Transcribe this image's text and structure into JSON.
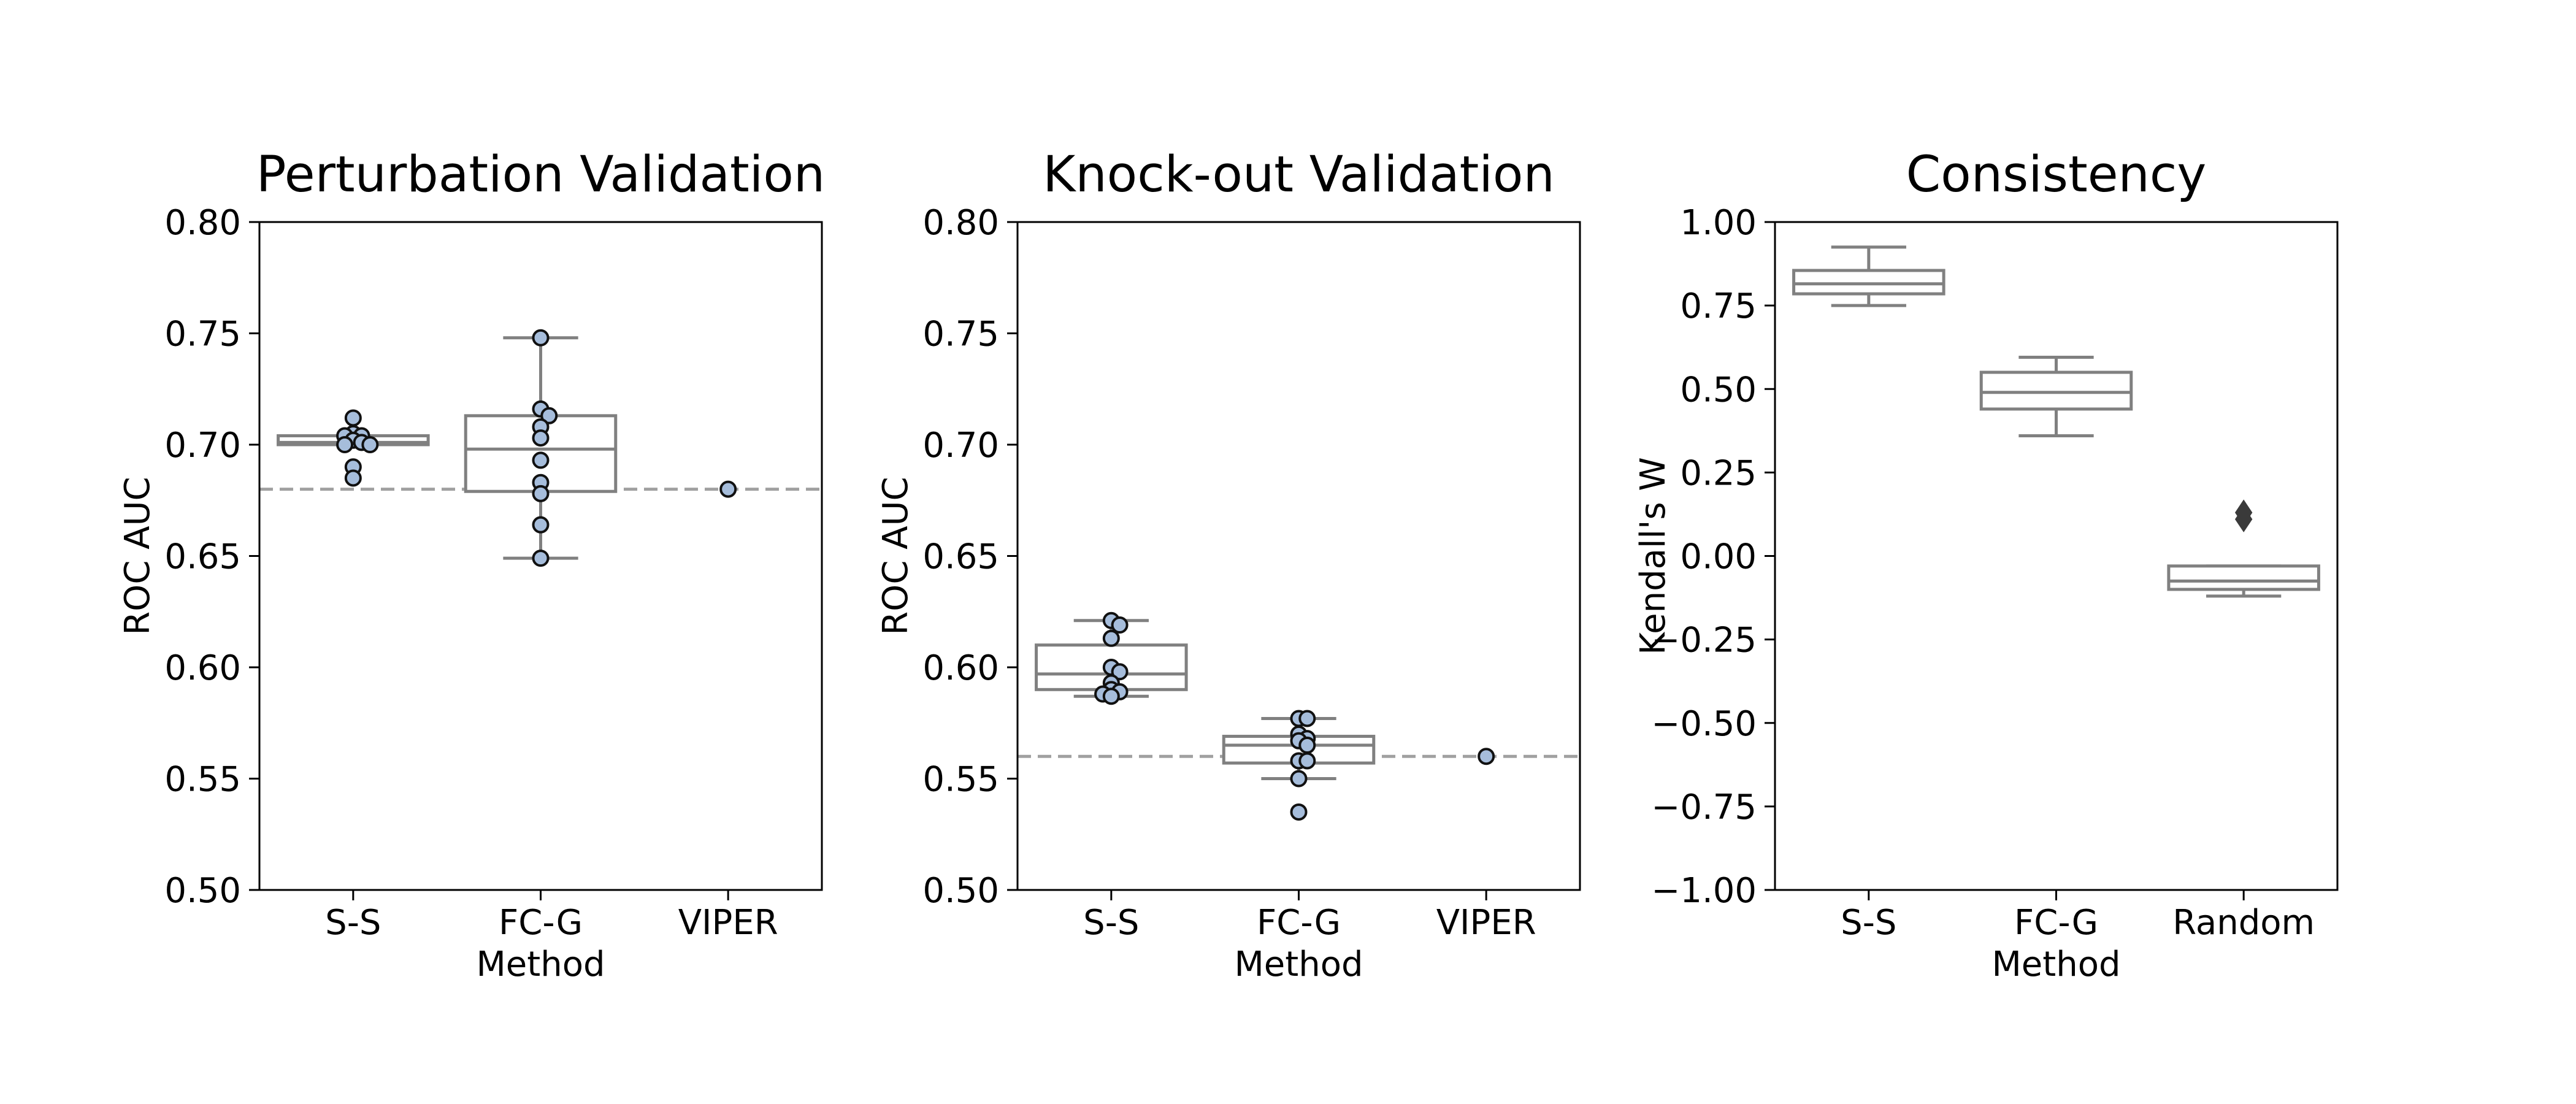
{
  "style": {
    "box_color": "#808080",
    "point_fill": "#a6bddb",
    "point_edge": "#111111",
    "outlier_color": "#3a3a3a",
    "reference_line_color": "#a0a0a0",
    "axis_color": "#000000"
  },
  "chart_data": [
    {
      "type": "box",
      "title": "Perturbation Validation",
      "xlabel": "Method",
      "ylabel": "ROC AUC",
      "ylim": [
        0.5,
        0.8
      ],
      "yticks": [
        0.5,
        0.55,
        0.6,
        0.65,
        0.7,
        0.75,
        0.8
      ],
      "ytick_labels": [
        "0.50",
        "0.55",
        "0.60",
        "0.65",
        "0.70",
        "0.75",
        "0.80"
      ],
      "categories": [
        "S-S",
        "FC-G",
        "VIPER"
      ],
      "reference_line": 0.68,
      "boxes": [
        {
          "category": "S-S",
          "whisker_low": 0.7,
          "q1": 0.7,
          "median": 0.701,
          "q3": 0.704,
          "whisker_high": 0.704
        },
        {
          "category": "FC-G",
          "whisker_low": 0.649,
          "q1": 0.679,
          "median": 0.698,
          "q3": 0.713,
          "whisker_high": 0.748
        }
      ],
      "points": [
        {
          "category": "S-S",
          "values": [
            0.712,
            0.705,
            0.704,
            0.704,
            0.702,
            0.701,
            0.7,
            0.7,
            0.69,
            0.685
          ]
        },
        {
          "category": "FC-G",
          "values": [
            0.748,
            0.716,
            0.713,
            0.708,
            0.703,
            0.693,
            0.683,
            0.678,
            0.664,
            0.649
          ]
        },
        {
          "category": "VIPER",
          "values": [
            0.68
          ]
        }
      ],
      "outliers": []
    },
    {
      "type": "box",
      "title": "Knock-out Validation",
      "xlabel": "Method",
      "ylabel": "ROC AUC",
      "ylim": [
        0.5,
        0.8
      ],
      "yticks": [
        0.5,
        0.55,
        0.6,
        0.65,
        0.7,
        0.75,
        0.8
      ],
      "ytick_labels": [
        "0.50",
        "0.55",
        "0.60",
        "0.65",
        "0.70",
        "0.75",
        "0.80"
      ],
      "categories": [
        "S-S",
        "FC-G",
        "VIPER"
      ],
      "reference_line": 0.56,
      "boxes": [
        {
          "category": "S-S",
          "whisker_low": 0.587,
          "q1": 0.59,
          "median": 0.597,
          "q3": 0.61,
          "whisker_high": 0.621
        },
        {
          "category": "FC-G",
          "whisker_low": 0.55,
          "q1": 0.557,
          "median": 0.565,
          "q3": 0.569,
          "whisker_high": 0.577
        }
      ],
      "points": [
        {
          "category": "S-S",
          "values": [
            0.621,
            0.619,
            0.613,
            0.6,
            0.598,
            0.593,
            0.59,
            0.589,
            0.588,
            0.587
          ]
        },
        {
          "category": "FC-G",
          "values": [
            0.577,
            0.577,
            0.57,
            0.568,
            0.567,
            0.565,
            0.558,
            0.558,
            0.55,
            0.535
          ]
        },
        {
          "category": "VIPER",
          "values": [
            0.56
          ]
        }
      ],
      "outliers": []
    },
    {
      "type": "box",
      "title": "Consistency",
      "xlabel": "Method",
      "ylabel": "Kendall's W",
      "ylim": [
        -1.0,
        1.0
      ],
      "yticks": [
        -1.0,
        -0.75,
        -0.5,
        -0.25,
        0.0,
        0.25,
        0.5,
        0.75,
        1.0
      ],
      "ytick_labels": [
        "−1.00",
        "−0.75",
        "−0.50",
        "−0.25",
        "0.00",
        "0.25",
        "0.50",
        "0.75",
        "1.00"
      ],
      "categories": [
        "S-S",
        "FC-G",
        "Random"
      ],
      "reference_line": null,
      "boxes": [
        {
          "category": "S-S",
          "whisker_low": 0.75,
          "q1": 0.785,
          "median": 0.815,
          "q3": 0.855,
          "whisker_high": 0.925
        },
        {
          "category": "FC-G",
          "whisker_low": 0.36,
          "q1": 0.44,
          "median": 0.49,
          "q3": 0.55,
          "whisker_high": 0.595
        },
        {
          "category": "Random",
          "whisker_low": -0.12,
          "q1": -0.1,
          "median": -0.075,
          "q3": -0.03,
          "whisker_high": -0.03
        }
      ],
      "points": [],
      "outliers": [
        {
          "category": "Random",
          "values": [
            0.13,
            0.11
          ]
        }
      ]
    }
  ]
}
